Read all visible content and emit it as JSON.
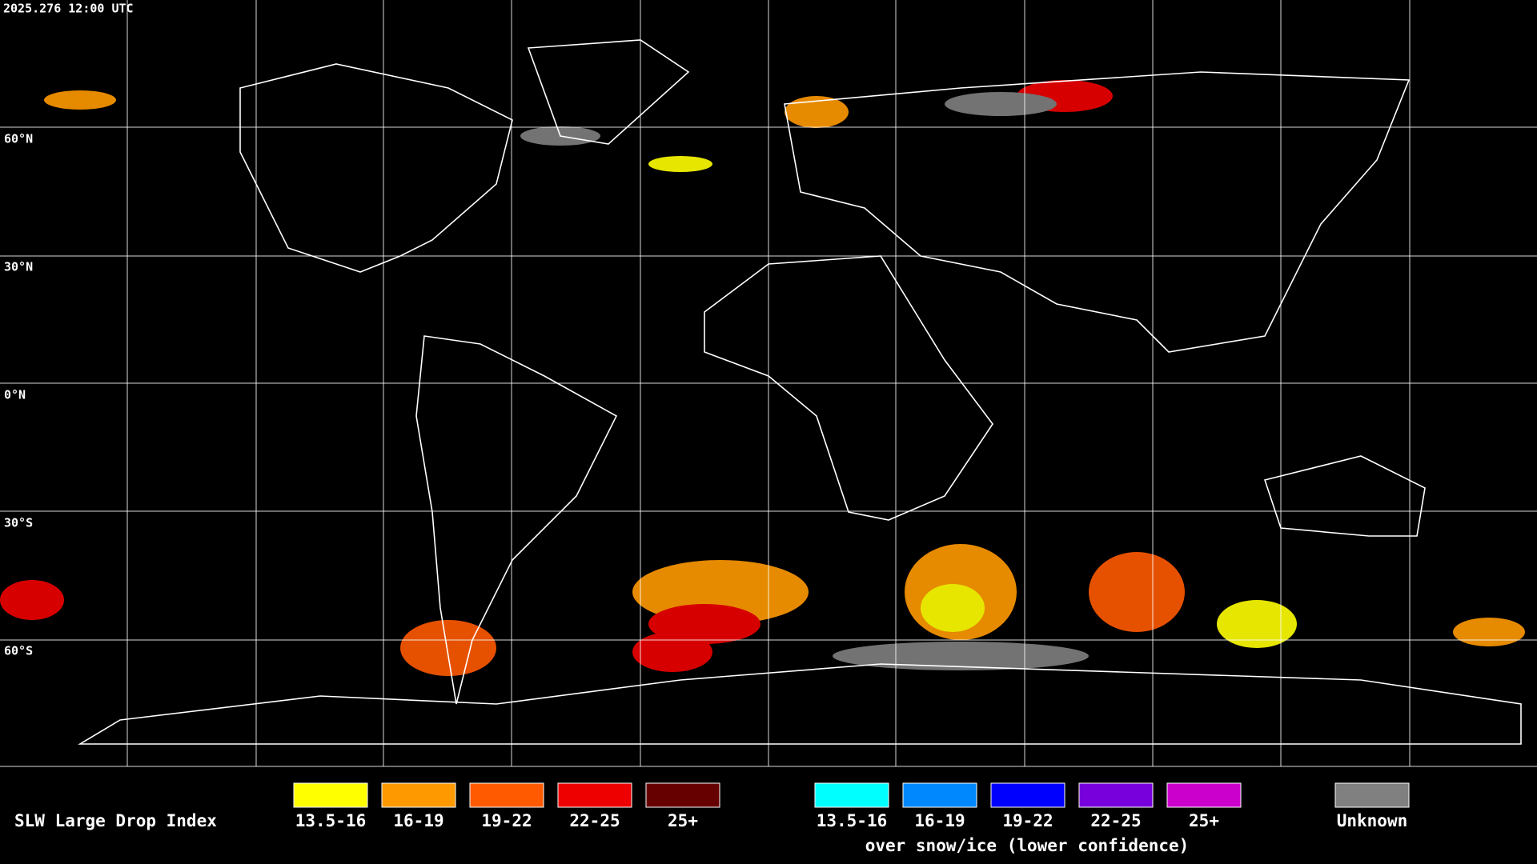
{
  "timestamp": "2025.276 12:00 UTC",
  "latitude_labels": [
    "60°N",
    "30°N",
    "0°N",
    "30°S",
    "60°S"
  ],
  "legend": {
    "title": "SLW Large Drop Index",
    "items": [
      {
        "label": "13.5-16",
        "color": "#ffff00"
      },
      {
        "label": "16-19",
        "color": "#ff9900"
      },
      {
        "label": "19-22",
        "color": "#ff5a00"
      },
      {
        "label": "22-25",
        "color": "#ee0000"
      },
      {
        "label": "25+",
        "color": "#660000"
      }
    ],
    "snow_items": [
      {
        "label": "13.5-16",
        "color": "#00ffff"
      },
      {
        "label": "16-19",
        "color": "#0088ff"
      },
      {
        "label": "19-22",
        "color": "#0000ff"
      },
      {
        "label": "22-25",
        "color": "#7700dd"
      },
      {
        "label": "25+",
        "color": "#cc00cc"
      }
    ],
    "snow_caption": "over snow/ice (lower confidence)",
    "unknown": {
      "label": "Unknown",
      "color": "#808080"
    }
  }
}
